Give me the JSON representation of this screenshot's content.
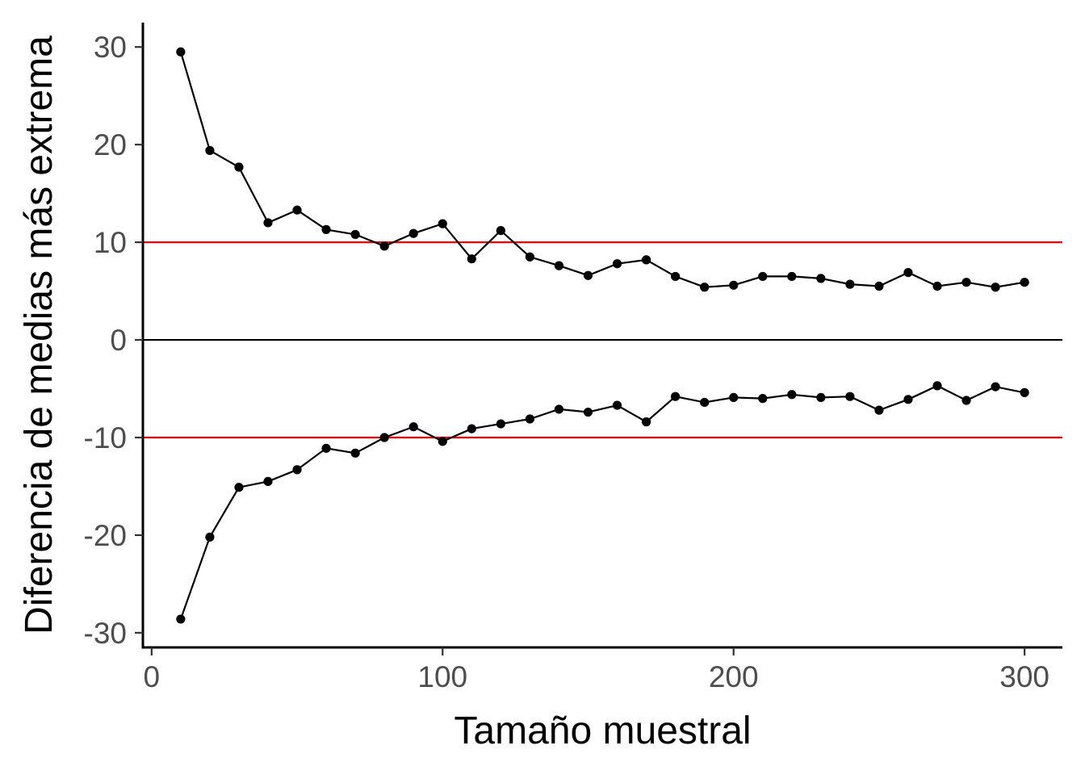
{
  "chart_data": {
    "type": "line",
    "title": "",
    "xlabel": "Tamaño muestral",
    "ylabel": "Diferencia de medias más extrema",
    "xlim": [
      -3,
      313
    ],
    "ylim": [
      -31.5,
      32.5
    ],
    "x_ticks": [
      0,
      100,
      200,
      300
    ],
    "y_ticks": [
      30,
      20,
      10,
      0,
      -10,
      -20,
      -30
    ],
    "x_tick_labels": [
      "0",
      "100",
      "200",
      "300"
    ],
    "y_tick_labels": [
      "30",
      "20",
      "10",
      "0",
      "-10",
      "-20",
      "-30"
    ],
    "grid": false,
    "legend": "none",
    "reference_lines": [
      {
        "y": 10,
        "color": "#ff0000"
      },
      {
        "y": 0,
        "color": "#000000"
      },
      {
        "y": -10,
        "color": "#ff0000"
      }
    ],
    "x": [
      10,
      20,
      30,
      40,
      50,
      60,
      70,
      80,
      90,
      100,
      110,
      120,
      130,
      140,
      150,
      160,
      170,
      180,
      190,
      200,
      210,
      220,
      230,
      240,
      250,
      260,
      270,
      280,
      290,
      300
    ],
    "series": [
      {
        "values": [
          29.5,
          19.4,
          17.7,
          12.0,
          13.3,
          11.3,
          10.8,
          9.6,
          10.9,
          11.9,
          8.3,
          11.2,
          8.5,
          7.6,
          6.6,
          7.8,
          8.2,
          6.5,
          5.4,
          5.6,
          6.5,
          6.5,
          6.3,
          5.7,
          5.5,
          6.9,
          5.5,
          5.9,
          5.4,
          5.9
        ],
        "color": "#000000"
      },
      {
        "values": [
          -28.6,
          -20.2,
          -15.1,
          -14.5,
          -13.3,
          -11.1,
          -11.6,
          -10.0,
          -8.9,
          -10.4,
          -9.1,
          -8.6,
          -8.1,
          -7.1,
          -7.4,
          -6.7,
          -8.4,
          -5.8,
          -6.4,
          -5.9,
          -6.0,
          -5.6,
          -5.9,
          -5.8,
          -7.2,
          -6.1,
          -4.7,
          -6.2,
          -4.8,
          -5.4
        ],
        "color": "#000000"
      }
    ]
  }
}
